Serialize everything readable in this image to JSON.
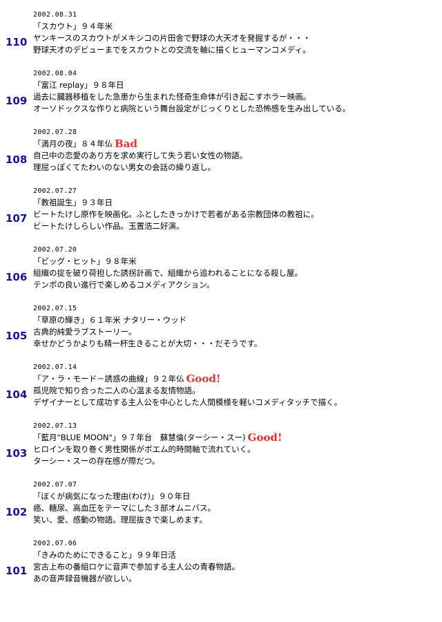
{
  "entries": [
    {
      "number": "110",
      "date": "2002.08.31",
      "title": "「スカウト」９４年米",
      "rating": "",
      "lines": [
        "ヤンキースのスカウトがメキシコの片田舎で野球の大天才を発掘するが・・・",
        "野球天才のデビューまでをスカウトとの交流を軸に描くヒューマンコメディ。"
      ]
    },
    {
      "number": "109",
      "date": "2002.08.04",
      "title": "「富江 replay」９８年日",
      "rating": "",
      "lines": [
        "過去に臓器移植をした急患から生まれた怪奇生命体が引き起こすホラー映画。",
        "オーソドックスな作りと病院という舞台設定がじっくりとした恐怖感を生み出している。"
      ]
    },
    {
      "number": "108",
      "date": "2002.07.28",
      "title": "「満月の夜」８４年仏",
      "rating": "Bad",
      "lines": [
        "自己中の恋愛のあり方を求め実行して失う若い女性の物語。",
        "理屈っぽくてたわいのない男女の会話の繰り返し。"
      ]
    },
    {
      "number": "107",
      "date": "2002.07.27",
      "title": "「教祖誕生」９３年日",
      "rating": "",
      "lines": [
        "ビートたけし原作を映画化。ふとしたきっかけで若者がある宗教団体の教祖に。",
        "ビートたけしらしい作品。玉置浩二好演。"
      ]
    },
    {
      "number": "106",
      "date": "2002.07.20",
      "title": "「ビッグ・ヒット」９８年米",
      "rating": "",
      "lines": [
        "組織の掟を破り荷担した誘拐計画で、組織から追われることになる殺し屋。",
        "テンポの良い進行で楽しめるコメディアクション。"
      ]
    },
    {
      "number": "105",
      "date": "2002.07.15",
      "title": "「草原の輝き」６１年米 ナタリー・ウッド",
      "rating": "",
      "lines": [
        "古典的純愛ラブストーリー。",
        "幸せかどうかよりも精一杯生きることが大切・・・だそうです。"
      ]
    },
    {
      "number": "104",
      "date": "2002.07.14",
      "title": "「ア・ラ・モード－誘惑の曲線」９２年仏",
      "rating": "Good!",
      "lines": [
        "孤児院で知り合った二人の心温まる友情物語。",
        "デザイナーとして成功する主人公を中心とした人間模様を軽いコメディタッチで描く。"
      ]
    },
    {
      "number": "103",
      "date": "2002.07.13",
      "title": "「藍月\"BLUE MOON\"」９７年台　蘇慧倫(ターシー・スー)",
      "rating": "Good!",
      "lines": [
        "ヒロインを取り巻く男性関係がポエム的時間軸で流れていく。",
        "ターシー・スーの存在感が際だつ。"
      ]
    },
    {
      "number": "102",
      "date": "2002.07.07",
      "title": "「ぼくが病気になった理由(わけ)」９０年日",
      "rating": "",
      "lines": [
        "癌、糖尿、高血圧をテーマにした３部オムニバス。",
        "笑い、愛、感動の物語。理屈抜きで楽しめます。"
      ]
    },
    {
      "number": "101",
      "date": "2002.07.06",
      "title": "「きみのためにできること」９９年日活",
      "rating": "",
      "lines": [
        "宮古上布の番組ロケに音声で参加する主人公の青春物語。",
        "あの音声録音機器が欲しい。"
      ]
    }
  ]
}
